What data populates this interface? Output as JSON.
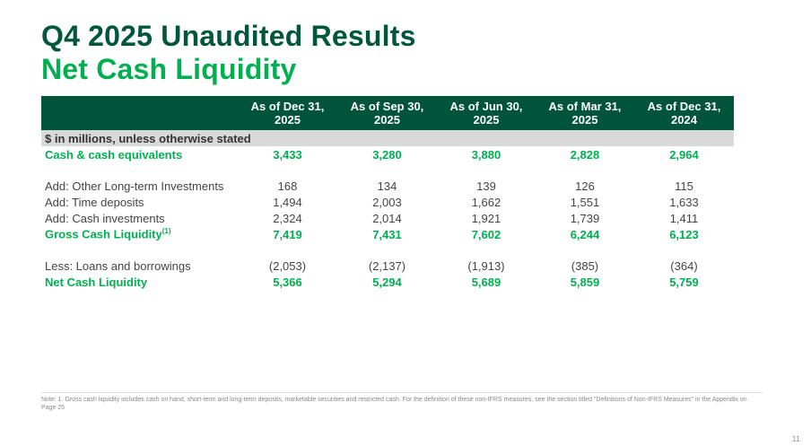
{
  "title": "Q4 2025 Unaudited Results",
  "subtitle": "Net Cash Liquidity",
  "table": {
    "headers": [
      "As of Dec 31, 2025",
      "As of Sep 30, 2025",
      "As of Jun 30, 2025",
      "As of Mar 31, 2025",
      "As of Dec 31, 2024"
    ],
    "header_lines": [
      [
        "As of Dec 31,",
        "2025"
      ],
      [
        "As of Sep 30,",
        "2025"
      ],
      [
        "As of Jun 30,",
        "2025"
      ],
      [
        "As of Mar 31,",
        "2025"
      ],
      [
        "As of Dec 31,",
        "2024"
      ]
    ],
    "units": "$ in millions, unless otherwise stated",
    "rows": [
      {
        "label": "Cash & cash equivalents",
        "values": [
          "3,433",
          "3,280",
          "3,880",
          "2,828",
          "2,964"
        ]
      },
      {
        "label": "Add: Other Long-term Investments",
        "values": [
          "168",
          "134",
          "139",
          "126",
          "115"
        ]
      },
      {
        "label": "Add: Time deposits",
        "values": [
          "1,494",
          "2,003",
          "1,662",
          "1,551",
          "1,633"
        ]
      },
      {
        "label": "Add: Cash investments",
        "values": [
          "2,324",
          "2,014",
          "1,921",
          "1,739",
          "1,411"
        ]
      },
      {
        "label": "Gross Cash Liquidity",
        "sup": "(1)",
        "values": [
          "7,419",
          "7,431",
          "7,602",
          "6,244",
          "6,123"
        ]
      },
      {
        "label": "Less: Loans and borrowings",
        "values": [
          "(2,053)",
          "(2,137)",
          "(1,913)",
          "(385)",
          "(364)"
        ]
      },
      {
        "label": "Net Cash Liquidity",
        "values": [
          "5,366",
          "5,294",
          "5,689",
          "5,859",
          "5,759"
        ]
      }
    ]
  },
  "note": "Note: 1. Gross cash liquidity includes cash on hand, short-term and long-term deposits, marketable securities and restricted cash. For the definition of these non-IFRS measures, see the section titled \"Definitions of Non-IFRS Measures\" in the Appendix on Page 25",
  "page_number": "11"
}
